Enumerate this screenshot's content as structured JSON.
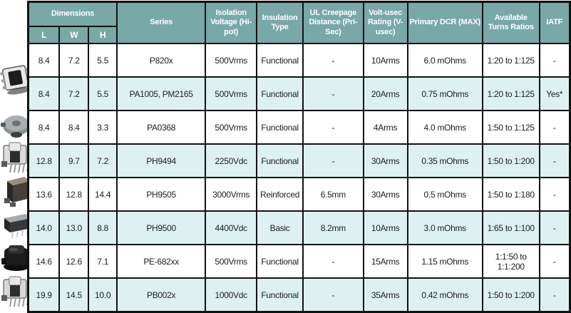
{
  "table": {
    "header": {
      "dimensions": "Dimensions",
      "dim_sub": [
        "L",
        "W",
        "H"
      ],
      "columns": [
        "Series",
        "Isolation Voltage (Hi-pot)",
        "Insulation Type",
        "UL Creepage Distance (Pri-Sec)",
        "Volt-usec Rating (V-usec)",
        "Primary DCR (MAX)",
        "Available Turns Ratios",
        "IATF"
      ]
    },
    "rows": [
      {
        "l": "8.4",
        "w": "7.2",
        "h": "5.5",
        "series": "P820x",
        "isolation": "500Vrms",
        "insulation": "Functional",
        "creepage": "-",
        "volt_usec": "10Arms",
        "dcr": "6.0 mOhms",
        "turns": "1:20 to 1:125",
        "iatf": "-"
      },
      {
        "l": "8.4",
        "w": "7.2",
        "h": "5.5",
        "series": "PA1005, PM2165",
        "isolation": "500Vrms",
        "insulation": "Functional",
        "creepage": "-",
        "volt_usec": "20Arms",
        "dcr": "0.75 mOhms",
        "turns": "1:20 to 1:125",
        "iatf": "Yes*"
      },
      {
        "l": "8.4",
        "w": "8.4",
        "h": "3.3",
        "series": "PA0368",
        "isolation": "500Vrms",
        "insulation": "Functional",
        "creepage": "-",
        "volt_usec": "4Arms",
        "dcr": "4.0 mOhms",
        "turns": "1:50 to 1:125",
        "iatf": "-"
      },
      {
        "l": "12.8",
        "w": "9.7",
        "h": "7.2",
        "series": "PH9494",
        "isolation": "2250Vdc",
        "insulation": "Functional",
        "creepage": "-",
        "volt_usec": "30Arms",
        "dcr": "0.35 mOhms",
        "turns": "1:50 to 1:200",
        "iatf": "-"
      },
      {
        "l": "13.6",
        "w": "12.8",
        "h": "14.4",
        "series": "PH9505",
        "isolation": "3000Vrms",
        "insulation": "Reinforced",
        "creepage": "6.5mm",
        "volt_usec": "30Arms",
        "dcr": "0.5 mOhms",
        "turns": "1:50 to 1:180",
        "iatf": "-"
      },
      {
        "l": "14.0",
        "w": "13.0",
        "h": "8.8",
        "series": "PH9500",
        "isolation": "4400Vdc",
        "insulation": "Basic",
        "creepage": "8.2mm",
        "volt_usec": "10Arms",
        "dcr": "3.0 mOhms",
        "turns": "1:65 to 1:100",
        "iatf": "-"
      },
      {
        "l": "14.6",
        "w": "12.6",
        "h": "7.1",
        "series": "PE-682xx",
        "isolation": "500Vrms",
        "insulation": "Functional",
        "creepage": "-",
        "volt_usec": "15Arms",
        "dcr": "1.15 mOhms",
        "turns": "1:1:50 to 1:1:200",
        "iatf": "-"
      },
      {
        "l": "19.9",
        "w": "14.5",
        "h": "10.0",
        "series": "PB002x",
        "isolation": "1000Vdc",
        "insulation": "Functional",
        "creepage": "-",
        "volt_usec": "35Arms",
        "dcr": "0.42 mOhms",
        "turns": "1:50 to 1:200",
        "iatf": "-"
      }
    ]
  },
  "colors": {
    "header_bg": "#78a8a8",
    "row_alt_bg": "#def1f2",
    "border": "#111111",
    "header_text": "#ffffff",
    "body_text": "#1d1d1d"
  }
}
